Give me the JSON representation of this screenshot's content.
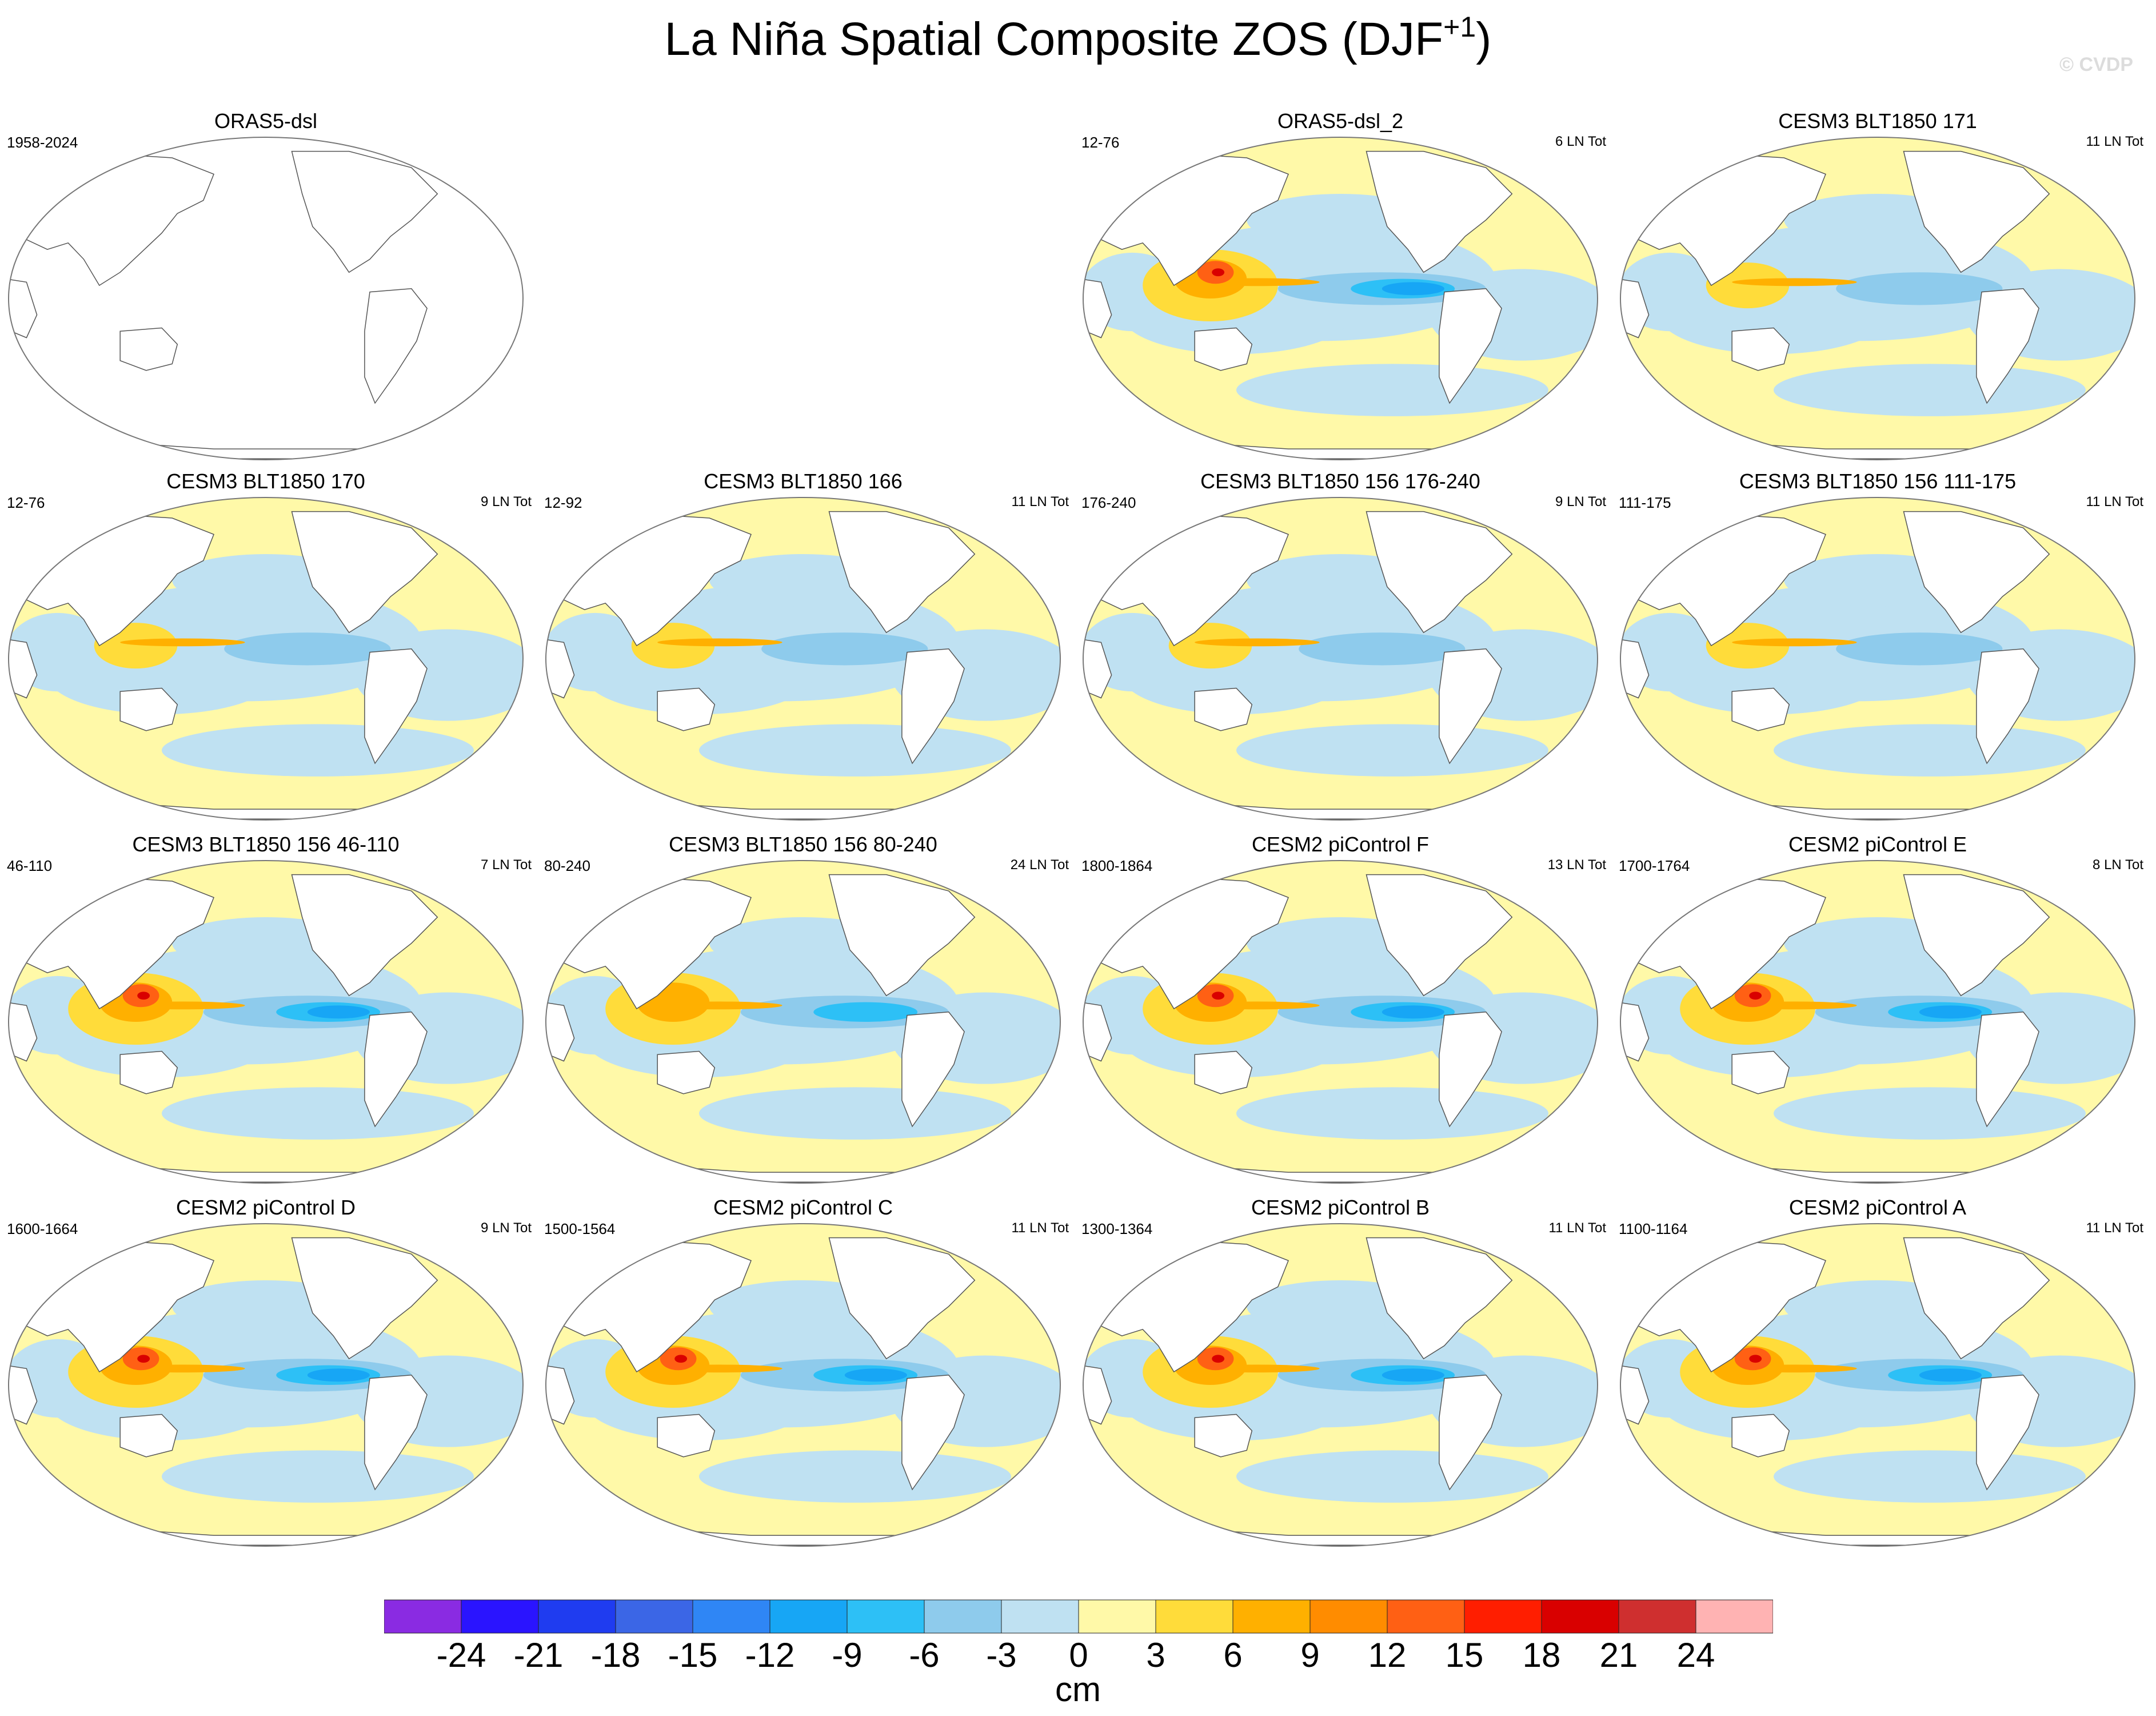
{
  "chart_data": {
    "type": "map-panels",
    "title": "La Niña Spatial Composite ZOS (DJF",
    "title_superscript": "+1",
    "watermark": "© CVDP",
    "units": "cm",
    "colorbar": {
      "levels": [
        "-24",
        "-21",
        "-18",
        "-15",
        "-12",
        "-9",
        "-6",
        "-3",
        "0",
        "3",
        "6",
        "9",
        "12",
        "15",
        "18",
        "21",
        "24"
      ],
      "colors": [
        "#8a2be2",
        "#2a14ff",
        "#1f3cf0",
        "#3b66e6",
        "#2f86f5",
        "#17a6f5",
        "#2dc0f6",
        "#8ecbec",
        "#bfe1f2",
        "#fff9a8",
        "#ffdc3a",
        "#ffb000",
        "#ff8c00",
        "#ff6014",
        "#ff1e00",
        "#d90000",
        "#cf2f2f",
        "#ffb3b3"
      ]
    },
    "panels": [
      {
        "title": "ORAS5-dsl",
        "years": "1958-2024",
        "count": "",
        "filled": false,
        "pattern": "none"
      },
      {
        "title": "",
        "years": "",
        "count": "",
        "filled": false,
        "pattern": "empty",
        "hidden": true
      },
      {
        "title": "ORAS5-dsl_2",
        "years": "12-76",
        "count": "6 LN Tot",
        "filled": true,
        "pattern": "strong"
      },
      {
        "title": "CESM3 BLT1850 171",
        "years": "",
        "count": "11 LN Tot",
        "filled": true,
        "pattern": "weak"
      },
      {
        "title": "CESM3 BLT1850 170",
        "years": "12-76",
        "count": "9 LN Tot",
        "filled": true,
        "pattern": "weak"
      },
      {
        "title": "CESM3 BLT1850 166",
        "years": "12-92",
        "count": "11 LN Tot",
        "filled": true,
        "pattern": "weak"
      },
      {
        "title": "CESM3 BLT1850 156 176-240",
        "years": "176-240",
        "count": "9 LN Tot",
        "filled": true,
        "pattern": "weak"
      },
      {
        "title": "CESM3 BLT1850 156 111-175",
        "years": "111-175",
        "count": "11 LN Tot",
        "filled": true,
        "pattern": "weak"
      },
      {
        "title": "CESM3 BLT1850 156 46-110",
        "years": "46-110",
        "count": "7 LN Tot",
        "filled": true,
        "pattern": "strong"
      },
      {
        "title": "CESM3 BLT1850 156 80-240",
        "years": "80-240",
        "count": "24 LN Tot",
        "filled": true,
        "pattern": "medium"
      },
      {
        "title": "CESM2 piControl F",
        "years": "1800-1864",
        "count": "13 LN Tot",
        "filled": true,
        "pattern": "strong"
      },
      {
        "title": "CESM2 piControl E",
        "years": "1700-1764",
        "count": "8 LN Tot",
        "filled": true,
        "pattern": "strong"
      },
      {
        "title": "CESM2 piControl D",
        "years": "1600-1664",
        "count": "9 LN Tot",
        "filled": true,
        "pattern": "strong"
      },
      {
        "title": "CESM2 piControl C",
        "years": "1500-1564",
        "count": "11 LN Tot",
        "filled": true,
        "pattern": "strong"
      },
      {
        "title": "CESM2 piControl B",
        "years": "1300-1364",
        "count": "11 LN Tot",
        "filled": true,
        "pattern": "strong"
      },
      {
        "title": "CESM2 piControl A",
        "years": "1100-1164",
        "count": "11 LN Tot",
        "filled": true,
        "pattern": "strong"
      }
    ]
  }
}
